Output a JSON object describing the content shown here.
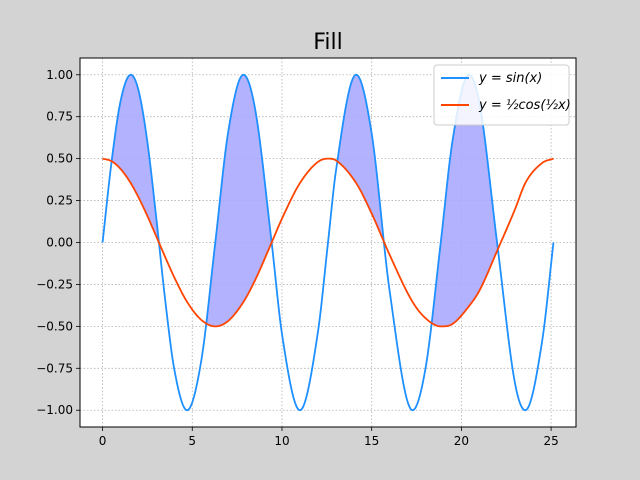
{
  "chart_data": {
    "type": "line",
    "title": "Fill",
    "xlabel": "",
    "ylabel": "",
    "xlim": [
      -1.257,
      26.389
    ],
    "ylim": [
      -1.1,
      1.1
    ],
    "xticks": [
      0,
      5,
      10,
      15,
      20,
      25
    ],
    "yticks": [
      -1.0,
      -0.75,
      -0.5,
      -0.25,
      0.0,
      0.25,
      0.5,
      0.75,
      1.0
    ],
    "xtick_labels": [
      "0",
      "5",
      "10",
      "15",
      "20",
      "25"
    ],
    "ytick_labels": [
      "−1.00",
      "−0.75",
      "−0.50",
      "−0.25",
      "0.00",
      "0.25",
      "0.50",
      "0.75",
      "1.00"
    ],
    "grid": true,
    "grid_style": "dotted",
    "legend_position": "top-right",
    "x": [
      0,
      0.5,
      1.0,
      1.5708,
      2.0,
      2.5,
      3.0,
      3.5,
      4.0,
      4.7124,
      5.5,
      6.2832,
      7.0,
      7.854,
      8.5,
      9.4248,
      10.0,
      11.0,
      12.0,
      12.566,
      13.0,
      14.137,
      15.0,
      16.0,
      17.279,
      18.0,
      18.85,
      19.5,
      20.42,
      21.0,
      22.0,
      23.0,
      23.562,
      24.5,
      25.133
    ],
    "series": [
      {
        "name": "y = sin(x)",
        "color": "#1e90ff",
        "values": [
          0.0,
          0.479,
          0.841,
          1.0,
          0.909,
          0.598,
          0.141,
          -0.351,
          -0.757,
          -1.0,
          -0.706,
          0.0,
          0.657,
          1.0,
          0.798,
          0.0,
          -0.544,
          -1.0,
          -0.537,
          0.0,
          0.42,
          1.0,
          0.65,
          -0.288,
          -1.0,
          -0.751,
          0.0,
          0.602,
          1.0,
          0.837,
          -0.009,
          -0.846,
          -1.0,
          -0.589,
          0.0
        ]
      },
      {
        "name": "y = ½cos(½x)",
        "color": "#ff4500",
        "values": [
          0.5,
          0.485,
          0.439,
          0.354,
          0.27,
          0.158,
          0.035,
          -0.089,
          -0.208,
          -0.354,
          -0.461,
          -0.5,
          -0.468,
          -0.354,
          -0.225,
          0.0,
          0.142,
          0.354,
          0.48,
          0.5,
          0.49,
          0.354,
          0.173,
          -0.073,
          -0.354,
          -0.451,
          -0.5,
          -0.486,
          -0.38,
          -0.288,
          -0.048,
          0.201,
          0.354,
          0.474,
          0.5
        ]
      }
    ],
    "fill_between": {
      "color": "#aaaaff",
      "condition": "y = sin(x) above y = ½cos(½x)"
    }
  },
  "legend": {
    "items": [
      {
        "label": "y = sin(x)",
        "color": "#1e90ff"
      },
      {
        "label": "y = ½cos(½x)",
        "color": "#ff4500"
      }
    ]
  }
}
